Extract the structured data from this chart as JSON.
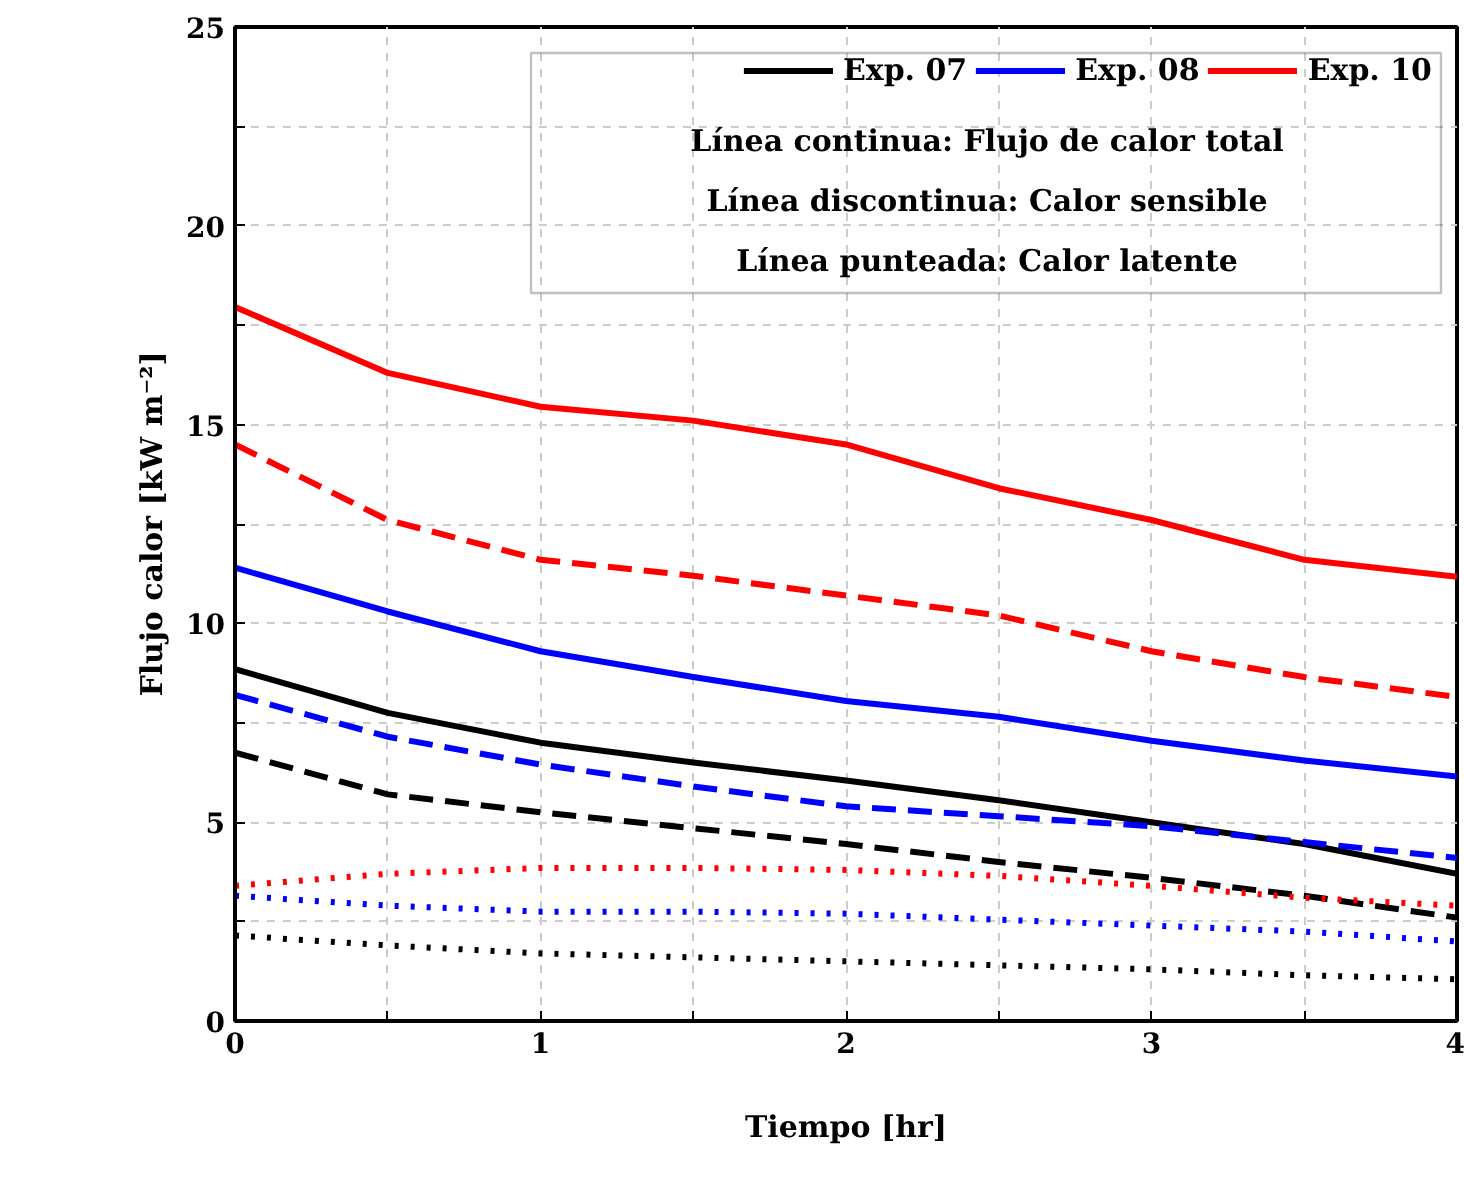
{
  "chart_data": {
    "type": "line",
    "xlabel": "Tiempo [hr]",
    "ylabel": "Flujo calor [kW m⁻²]",
    "x": [
      0,
      0.5,
      1,
      1.5,
      2,
      2.5,
      3,
      3.5,
      4
    ],
    "xlim": [
      0,
      4
    ],
    "ylim": [
      0,
      25
    ],
    "xticks": [
      0,
      {
        "value": 0.5,
        "label": null
      },
      1,
      {
        "value": 1.5,
        "label": null
      },
      2,
      {
        "value": 2.5,
        "label": null
      },
      3,
      {
        "value": 3.5,
        "label": null
      },
      4
    ],
    "yticks": [
      0,
      {
        "value": 2.5,
        "label": null
      },
      5,
      {
        "value": 7.5,
        "label": null
      },
      10,
      {
        "value": 12.5,
        "label": null
      },
      15,
      {
        "value": 17.5,
        "label": null
      },
      20,
      {
        "value": 22.5,
        "label": null
      },
      25
    ],
    "grid": true,
    "legend": "top right",
    "marker": "none",
    "annotations": [
      "Línea continua: Flujo de calor total",
      "Línea discontinua: Calor sensible",
      "Línea punteada: Calor latente"
    ],
    "series": [
      {
        "name": "Exp. 07",
        "color": "#000000",
        "line_style": "solid",
        "values": [
          8.85,
          7.75,
          7.0,
          6.5,
          6.05,
          5.55,
          5.0,
          4.45,
          3.7
        ]
      },
      {
        "name": "Exp. 08",
        "color": "#0000ff",
        "line_style": "solid",
        "values": [
          11.4,
          10.3,
          9.3,
          8.65,
          8.05,
          7.65,
          7.05,
          6.55,
          6.15
        ]
      },
      {
        "name": "Exp. 10",
        "color": "#ff0000",
        "line_style": "solid",
        "values": [
          17.96,
          16.3,
          15.45,
          15.1,
          14.5,
          13.4,
          12.6,
          11.6,
          11.17
        ]
      },
      {
        "color": "#000000",
        "line_style": "dashed",
        "values": [
          6.75,
          5.7,
          5.25,
          4.85,
          4.45,
          4.0,
          3.6,
          3.15,
          2.6
        ]
      },
      {
        "color": "#0000ff",
        "line_style": "dashed",
        "values": [
          8.2,
          7.15,
          6.45,
          5.9,
          5.4,
          5.15,
          4.9,
          4.5,
          4.1
        ]
      },
      {
        "color": "#ff0000",
        "line_style": "dashed",
        "values": [
          14.5,
          12.6,
          11.6,
          11.2,
          10.7,
          10.2,
          9.3,
          8.65,
          8.15
        ]
      },
      {
        "color": "#000000",
        "line_style": "dotted",
        "values": [
          2.15,
          1.9,
          1.7,
          1.6,
          1.5,
          1.4,
          1.3,
          1.15,
          1.05
        ]
      },
      {
        "color": "#0000ff",
        "line_style": "dotted",
        "values": [
          3.15,
          2.9,
          2.75,
          2.75,
          2.7,
          2.55,
          2.4,
          2.25,
          2.0
        ]
      },
      {
        "color": "#ff0000",
        "line_style": "dotted",
        "values": [
          3.4,
          3.7,
          3.85,
          3.85,
          3.8,
          3.65,
          3.4,
          3.1,
          2.9
        ]
      }
    ]
  }
}
